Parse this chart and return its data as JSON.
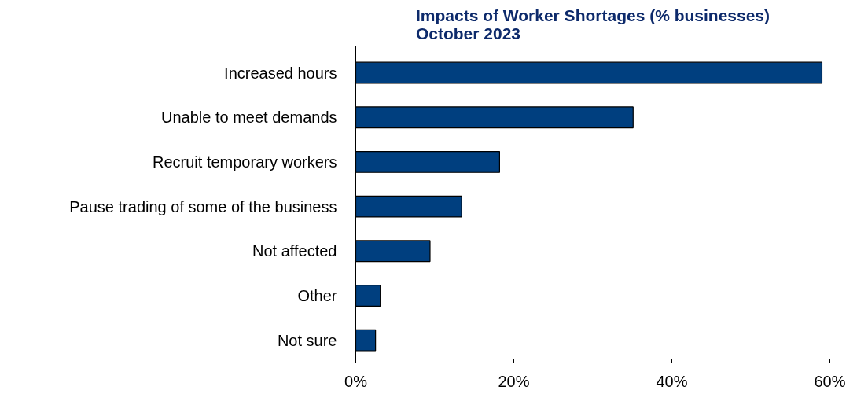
{
  "chart_data": {
    "type": "bar",
    "orientation": "horizontal",
    "title": "Impacts of Worker Shortages (% businesses)\nOctober 2023",
    "categories": [
      "Increased hours",
      "Unable to meet demands",
      "Recruit temporary workers",
      "Pause trading of some of the business",
      "Not affected",
      "Other",
      "Not sure"
    ],
    "values": [
      59.0,
      35.1,
      18.2,
      13.4,
      9.4,
      3.1,
      2.5
    ],
    "color": "#003f7f",
    "xlim": [
      0,
      60
    ],
    "xticks": [
      {
        "value": 0,
        "label": "0%"
      },
      {
        "value": 20,
        "label": "20%"
      },
      {
        "value": 40,
        "label": "40%"
      },
      {
        "value": 60,
        "label": "60%"
      }
    ],
    "grid": false
  }
}
